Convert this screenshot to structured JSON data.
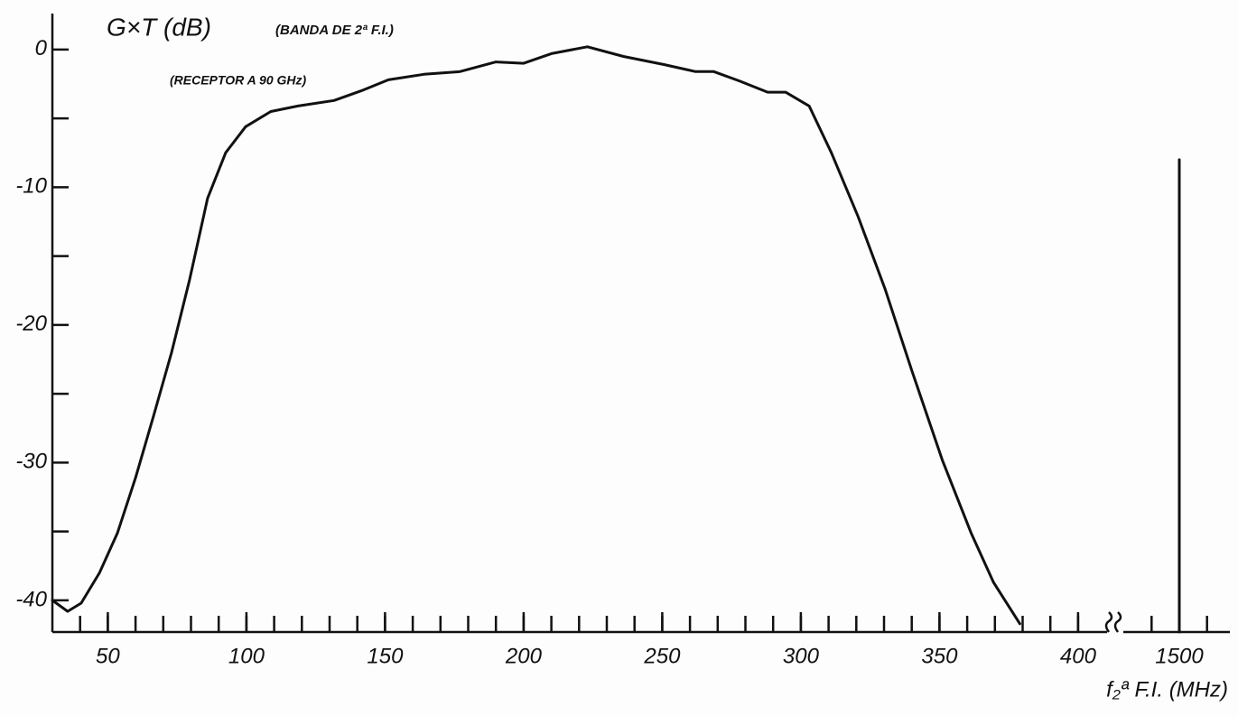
{
  "chart_data": {
    "type": "line",
    "title": "G×T (dB)",
    "subtitle": "(BANDA DE 2ª F.I.)",
    "annotation": "(RECEPTOR A 90 GHz)",
    "x_label": "f₂ª F.I. (MHz)",
    "series": [
      {
        "color": "#111111",
        "x": [
          30,
          35.5,
          40.4,
          47,
          53.5,
          60,
          66.5,
          73,
          79.5,
          86,
          92.5,
          99.7,
          108.8,
          118.6,
          131.6,
          141.4,
          151.2,
          164,
          177,
          190,
          200,
          210,
          223,
          236,
          250.8,
          262,
          268.6,
          278,
          288,
          294.5,
          303,
          311,
          320.6,
          330.4,
          340,
          351,
          361.4,
          369.5,
          379
        ],
        "values": [
          -40,
          -40.8,
          -40.2,
          -38,
          -35.1,
          -31.1,
          -26.6,
          -22,
          -16.7,
          -10.8,
          -7.5,
          -5.6,
          -4.5,
          -4.1,
          -3.7,
          -3,
          -2.2,
          -1.8,
          -1.6,
          -0.9,
          -1,
          -0.3,
          0.2,
          -0.5,
          -1.1,
          -1.6,
          -1.6,
          -2.3,
          -3.1,
          -3.1,
          -4.1,
          -7.5,
          -12.1,
          -17.4,
          -23.3,
          -29.8,
          -35.1,
          -38.7,
          -41.7
        ]
      },
      {
        "color": "#111111",
        "x": [
          1500,
          1500
        ],
        "values": [
          -42.3,
          -8
        ]
      }
    ],
    "xlim": [
      30,
      1520
    ],
    "x_break": [
      410,
      1480
    ],
    "xticks": [
      50,
      100,
      150,
      200,
      250,
      300,
      350,
      400,
      1500
    ],
    "xminor_ticks": [
      40,
      50,
      60,
      70,
      80,
      90,
      100,
      110,
      120,
      130,
      140,
      150,
      160,
      170,
      180,
      190,
      200,
      210,
      220,
      230,
      240,
      250,
      260,
      270,
      280,
      290,
      300,
      310,
      320,
      330,
      340,
      350,
      360,
      370,
      380,
      390,
      400,
      1490,
      1500,
      1510
    ],
    "ylim": [
      -42.3,
      3.4
    ],
    "yticks": [
      0,
      -10,
      -20,
      -30,
      -40
    ],
    "yminor_ticks": [
      -5,
      -15,
      -25,
      -35
    ],
    "grid": false
  }
}
